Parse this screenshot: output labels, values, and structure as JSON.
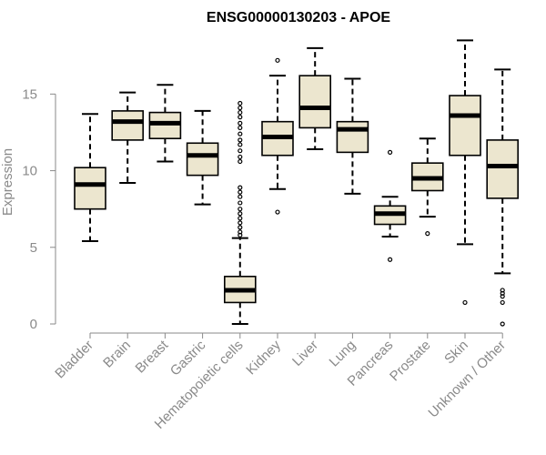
{
  "chart_data": {
    "type": "box",
    "title": "ENSG00000130203 - APOE",
    "xlabel": "",
    "ylabel": "Expression",
    "ylim": [
      0,
      19
    ],
    "yticks": [
      0,
      5,
      10,
      15
    ],
    "grid": false,
    "colors": {
      "box_fill": "#ece6cf",
      "box_stroke": "#000000",
      "axis": "#8a8a8a"
    },
    "categories": [
      "Bladder",
      "Brain",
      "Breast",
      "Gastric",
      "Hematopoietic cells",
      "Kidney",
      "Liver",
      "Lung",
      "Pancreas",
      "Prostate",
      "Skin",
      "Unknown / Other"
    ],
    "boxes": [
      {
        "category": "Bladder",
        "whisker_low": 5.4,
        "q1": 7.5,
        "median": 9.1,
        "q3": 10.2,
        "whisker_high": 13.7,
        "outliers": []
      },
      {
        "category": "Brain",
        "whisker_low": 9.2,
        "q1": 12.0,
        "median": 13.2,
        "q3": 13.9,
        "whisker_high": 15.1,
        "outliers": []
      },
      {
        "category": "Breast",
        "whisker_low": 10.6,
        "q1": 12.1,
        "median": 13.1,
        "q3": 13.8,
        "whisker_high": 15.6,
        "outliers": []
      },
      {
        "category": "Gastric",
        "whisker_low": 7.8,
        "q1": 9.7,
        "median": 11.0,
        "q3": 11.8,
        "whisker_high": 13.9,
        "outliers": []
      },
      {
        "category": "Hematopoietic cells",
        "whisker_low": 0.0,
        "q1": 1.4,
        "median": 2.2,
        "q3": 3.1,
        "whisker_high": 5.6,
        "outliers": [
          5.8,
          6.0,
          6.3,
          6.6,
          6.9,
          7.2,
          7.5,
          7.9,
          8.3,
          8.6,
          8.9,
          10.6,
          10.9,
          11.3,
          11.7,
          12.0,
          12.4,
          12.8,
          13.1,
          13.5,
          13.8,
          14.1,
          14.4
        ]
      },
      {
        "category": "Kidney",
        "whisker_low": 8.8,
        "q1": 11.0,
        "median": 12.2,
        "q3": 13.2,
        "whisker_high": 16.2,
        "outliers": [
          7.3,
          17.2
        ]
      },
      {
        "category": "Liver",
        "whisker_low": 11.4,
        "q1": 12.8,
        "median": 14.1,
        "q3": 16.2,
        "whisker_high": 18.0,
        "outliers": []
      },
      {
        "category": "Lung",
        "whisker_low": 8.5,
        "q1": 11.2,
        "median": 12.7,
        "q3": 13.2,
        "whisker_high": 16.0,
        "outliers": []
      },
      {
        "category": "Pancreas",
        "whisker_low": 5.7,
        "q1": 6.5,
        "median": 7.2,
        "q3": 7.7,
        "whisker_high": 8.3,
        "outliers": [
          4.2,
          11.2
        ]
      },
      {
        "category": "Prostate",
        "whisker_low": 7.0,
        "q1": 8.7,
        "median": 9.5,
        "q3": 10.5,
        "whisker_high": 12.1,
        "outliers": [
          5.9
        ]
      },
      {
        "category": "Skin",
        "whisker_low": 5.2,
        "q1": 11.0,
        "median": 13.6,
        "q3": 14.9,
        "whisker_high": 18.5,
        "outliers": [
          1.4
        ]
      },
      {
        "category": "Unknown / Other",
        "whisker_low": 3.3,
        "q1": 8.2,
        "median": 10.3,
        "q3": 12.0,
        "whisker_high": 16.6,
        "outliers": [
          0.0,
          1.4,
          1.8,
          2.0,
          2.2
        ]
      }
    ]
  }
}
